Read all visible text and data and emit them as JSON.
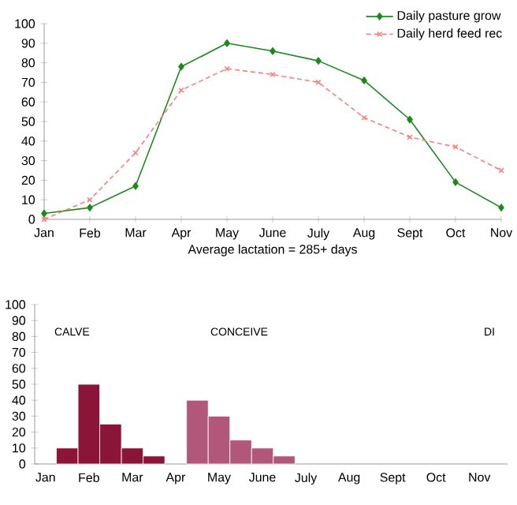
{
  "chart_data": [
    {
      "type": "line",
      "categories": [
        "Jan",
        "Feb",
        "Mar",
        "Apr",
        "May",
        "June",
        "July",
        "Aug",
        "Sept",
        "Oct",
        "Nov"
      ],
      "series": [
        {
          "name": "Daily pasture grow",
          "color": "#1a8a1a",
          "marker": "diamond",
          "line_style": "solid",
          "values": [
            3,
            6,
            17,
            78,
            90,
            86,
            81,
            71,
            51,
            19,
            6
          ]
        },
        {
          "name": "Daily herd feed rec",
          "color": "#ff7f7f",
          "marker": "cross",
          "line_style": "dotted",
          "values": [
            0,
            10,
            34,
            66,
            77,
            74,
            70,
            52,
            42,
            37,
            25
          ]
        }
      ],
      "xlabel": "Average lactation = 285+ days",
      "ylim": [
        0,
        100
      ],
      "yticks": [
        0,
        10,
        20,
        30,
        40,
        50,
        60,
        70,
        80,
        90,
        100
      ],
      "legend": "top right"
    },
    {
      "type": "bar",
      "categories": [
        "Jan",
        null,
        "Feb",
        null,
        "Mar",
        null,
        "Apr",
        null,
        "May",
        null,
        "June",
        null,
        "July",
        null,
        "Aug",
        null,
        "Sept",
        null,
        "Oct",
        null,
        "Nov",
        null
      ],
      "series": [
        {
          "color": "#8b1538",
          "values": [
            null,
            10,
            50,
            25,
            10,
            5,
            null,
            null,
            null,
            null,
            null,
            null,
            null,
            null,
            null,
            null,
            null,
            null,
            null,
            null,
            null,
            null
          ]
        },
        {
          "color": "#b0577a",
          "values": [
            null,
            null,
            null,
            null,
            null,
            null,
            null,
            40,
            30,
            15,
            10,
            5,
            null,
            null,
            null,
            null,
            null,
            null,
            null,
            null,
            null,
            null
          ]
        }
      ],
      "annotations": [
        "CALVE",
        "CONCEIVE",
        "DI"
      ],
      "ylim": [
        0,
        100
      ],
      "yticks": [
        0,
        10,
        20,
        30,
        40,
        50,
        60,
        70,
        80,
        90,
        100
      ]
    }
  ]
}
